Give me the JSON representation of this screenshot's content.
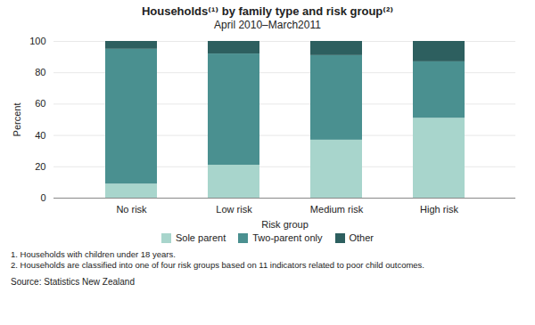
{
  "chart_data": {
    "type": "bar",
    "stacked": true,
    "title": "Households⁽¹⁾ by family  type and risk group⁽²⁾",
    "subtitle": "April 2010–March2011",
    "categories": [
      "No risk",
      "Low risk",
      "Medium risk",
      "High risk"
    ],
    "xlabel": "Risk group",
    "ylabel": "Percent",
    "ylim": [
      0,
      100
    ],
    "yticks": [
      0,
      20,
      40,
      60,
      80,
      100
    ],
    "grid": true,
    "legend": "bottom",
    "series": [
      {
        "name": "Sole parent",
        "color": "#a8d5cc",
        "values": [
          9,
          21,
          37,
          51
        ]
      },
      {
        "name": "Two-parent only",
        "color": "#4a9090",
        "values": [
          86,
          71,
          54,
          36
        ]
      },
      {
        "name": "Other",
        "color": "#2d5f5f",
        "values": [
          5,
          8,
          9,
          13
        ]
      }
    ],
    "footnotes": [
      "1. Households with children under 18 years.",
      "2. Households are classified into one of four risk groups based on 11 indicators related to poor child outcomes."
    ],
    "source": "Source: Statistics New Zealand"
  }
}
